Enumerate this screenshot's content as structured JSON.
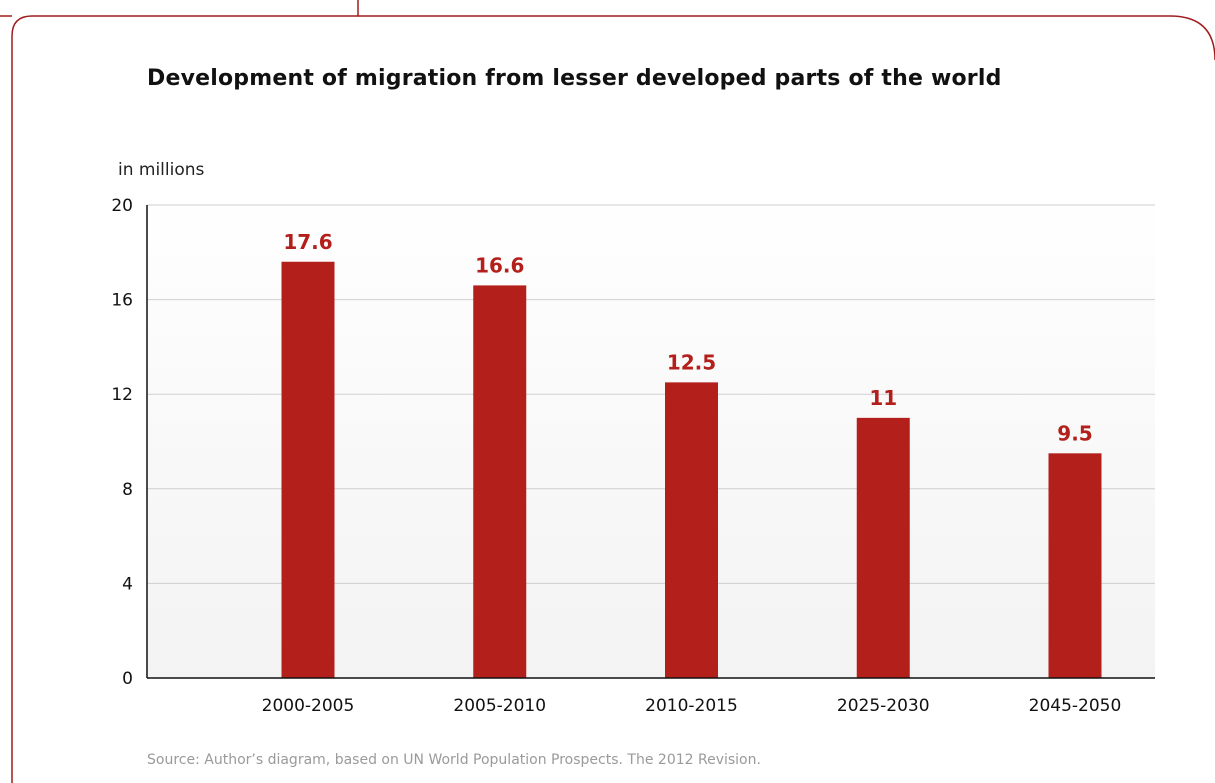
{
  "chart_data": {
    "type": "bar",
    "title": "Development of migration from lesser developed parts of the world",
    "ylabel": "in millions",
    "xlabel": "",
    "categories": [
      "2000-2005",
      "2005-2010",
      "2010-2015",
      "2025-2030",
      "2045-2050"
    ],
    "values": [
      17.6,
      16.6,
      12.5,
      11,
      9.5
    ],
    "data_labels": [
      "17.6",
      "16.6",
      "12.5",
      "11",
      "9.5"
    ],
    "ylim": [
      0,
      20
    ],
    "yticks": [
      0,
      4,
      8,
      12,
      16,
      20
    ],
    "grid": true,
    "legend": "none",
    "source": "Source: Author’s diagram, based on UN World Population Prospects. The 2012 Revision."
  },
  "colors": {
    "bar": "#b31f1a",
    "data_label": "#b31f1a",
    "frame": "#a11c1c",
    "grid": "#cfcfcf",
    "axis": "#111111"
  }
}
